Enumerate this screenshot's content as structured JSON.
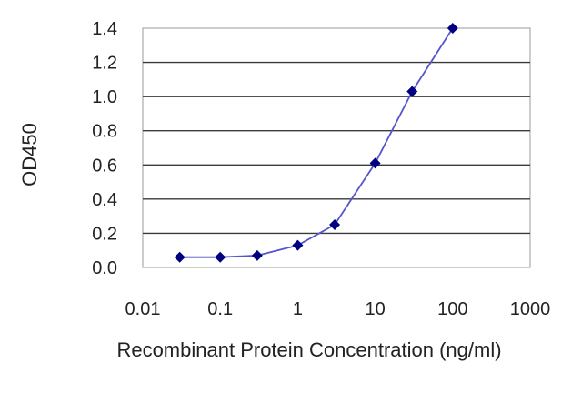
{
  "chart_data": {
    "type": "line",
    "title": "",
    "xlabel": "Recombinant Protein Concentration (ng/ml)",
    "ylabel": "OD450",
    "x_scale": "log",
    "xlim": [
      0.01,
      1000
    ],
    "ylim": [
      0.0,
      1.4
    ],
    "x_ticks": [
      0.01,
      0.1,
      1,
      10,
      100,
      1000
    ],
    "x_tick_labels": [
      "0.01",
      "0.1",
      "1",
      "10",
      "100",
      "1000"
    ],
    "y_ticks": [
      0.0,
      0.2,
      0.4,
      0.6,
      0.8,
      1.0,
      1.2,
      1.4
    ],
    "y_tick_labels": [
      "0.0",
      "0.2",
      "0.4",
      "0.6",
      "0.8",
      "1.0",
      "1.2",
      "1.4"
    ],
    "grid": "horizontal",
    "legend": "none",
    "series": [
      {
        "x": [
          0.03,
          0.1,
          0.3,
          1,
          3,
          10,
          30,
          100
        ],
        "y": [
          0.06,
          0.06,
          0.07,
          0.13,
          0.25,
          0.61,
          1.03,
          1.4
        ],
        "line_color": "#5555cc",
        "marker_color": "#000080",
        "marker": "diamond"
      }
    ]
  }
}
